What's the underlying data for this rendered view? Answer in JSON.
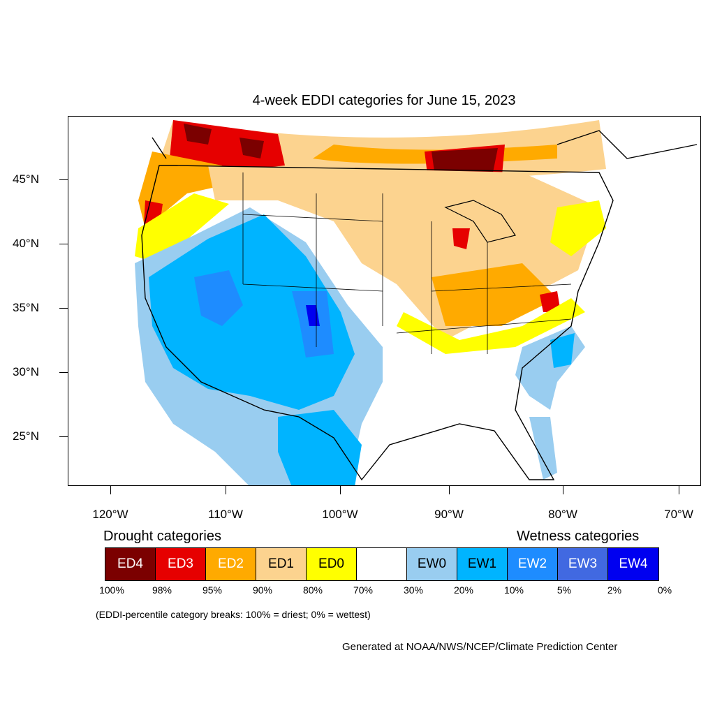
{
  "title": "4-week EDDI categories for June 15, 2023",
  "lat_labels": [
    "45°N",
    "40°N",
    "35°N",
    "30°N",
    "25°N"
  ],
  "lon_labels": [
    "120°W",
    "110°W",
    "100°W",
    "90°W",
    "80°W",
    "70°W"
  ],
  "legend": {
    "drought_heading": "Drought categories",
    "wetness_heading": "Wetness categories",
    "categories": [
      {
        "label": "ED4",
        "color": "#7b0000",
        "text_color": "#ffffff"
      },
      {
        "label": "ED3",
        "color": "#e60000",
        "text_color": "#ffffff"
      },
      {
        "label": "ED2",
        "color": "#ffaa00",
        "text_color": "#ffffff"
      },
      {
        "label": "ED1",
        "color": "#fcd38f",
        "text_color": "#000000"
      },
      {
        "label": "ED0",
        "color": "#ffff00",
        "text_color": "#000000"
      },
      {
        "label": "",
        "color": "#ffffff",
        "text_color": "#000000"
      },
      {
        "label": "EW0",
        "color": "#99cdf0",
        "text_color": "#000000"
      },
      {
        "label": "EW1",
        "color": "#00b4ff",
        "text_color": "#000000"
      },
      {
        "label": "EW2",
        "color": "#1e8cff",
        "text_color": "#ffffff"
      },
      {
        "label": "EW3",
        "color": "#4169e1",
        "text_color": "#ffffff"
      },
      {
        "label": "EW4",
        "color": "#0000f0",
        "text_color": "#ffffff"
      }
    ],
    "breaks": [
      "100%",
      "98%",
      "95%",
      "90%",
      "80%",
      "70%",
      "30%",
      "20%",
      "10%",
      "5%",
      "2%",
      "0%"
    ]
  },
  "note": "(EDDI-percentile category breaks: 100% = driest; 0% = wettest)",
  "credit": "Generated at NOAA/NWS/NCEP/Climate Prediction Center"
}
